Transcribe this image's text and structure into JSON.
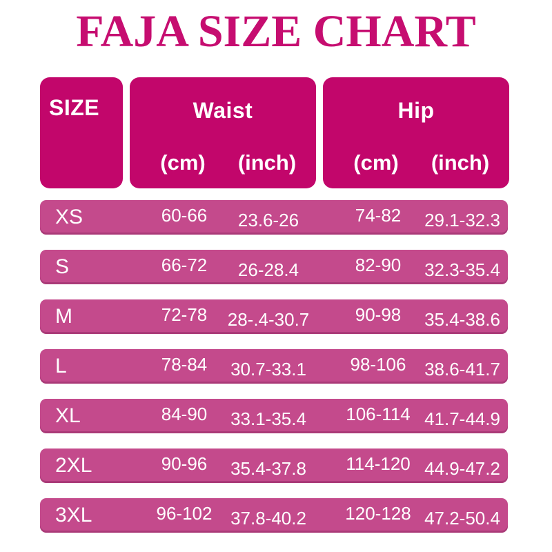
{
  "title": "FAJA SIZE CHART",
  "colors": {
    "title_text": "#c60d70",
    "header_block": "#c2066b",
    "row_bar": "#c44a8c",
    "table_text": "#ffffff",
    "background": "#ffffff"
  },
  "header": {
    "size_label": "SIZE",
    "waist_label": "Waist",
    "hip_label": "Hip",
    "cm_label": "(cm)",
    "inch_label": "(inch)"
  },
  "rows": [
    {
      "size": "XS",
      "waist_cm": "60-66",
      "waist_inch": "23.6-26",
      "hip_cm": "74-82",
      "hip_inch": "29.1-32.3"
    },
    {
      "size": "S",
      "waist_cm": "66-72",
      "waist_inch": "26-28.4",
      "hip_cm": "82-90",
      "hip_inch": "32.3-35.4"
    },
    {
      "size": "M",
      "waist_cm": "72-78",
      "waist_inch": "28-.4-30.7",
      "hip_cm": "90-98",
      "hip_inch": "35.4-38.6"
    },
    {
      "size": "L",
      "waist_cm": "78-84",
      "waist_inch": "30.7-33.1",
      "hip_cm": "98-106",
      "hip_inch": "38.6-41.7"
    },
    {
      "size": "XL",
      "waist_cm": "84-90",
      "waist_inch": "33.1-35.4",
      "hip_cm": "106-114",
      "hip_inch": "41.7-44.9"
    },
    {
      "size": "2XL",
      "waist_cm": "90-96",
      "waist_inch": "35.4-37.8",
      "hip_cm": "114-120",
      "hip_inch": "44.9-47.2"
    },
    {
      "size": "3XL",
      "waist_cm": "96-102",
      "waist_inch": "37.8-40.2",
      "hip_cm": "120-128",
      "hip_inch": "47.2-50.4"
    }
  ],
  "chart_data": {
    "type": "table",
    "title": "FAJA SIZE CHART",
    "columns": [
      "SIZE",
      "Waist (cm)",
      "Waist (inch)",
      "Hip (cm)",
      "Hip (inch)"
    ],
    "rows": [
      [
        "XS",
        "60-66",
        "23.6-26",
        "74-82",
        "29.1-32.3"
      ],
      [
        "S",
        "66-72",
        "26-28.4",
        "82-90",
        "32.3-35.4"
      ],
      [
        "M",
        "72-78",
        "28-.4-30.7",
        "90-98",
        "35.4-38.6"
      ],
      [
        "L",
        "78-84",
        "30.7-33.1",
        "98-106",
        "38.6-41.7"
      ],
      [
        "XL",
        "84-90",
        "33.1-35.4",
        "106-114",
        "41.7-44.9"
      ],
      [
        "2XL",
        "90-96",
        "35.4-37.8",
        "114-120",
        "44.9-47.2"
      ],
      [
        "3XL",
        "96-102",
        "37.8-40.2",
        "120-128",
        "47.2-50.4"
      ]
    ]
  }
}
